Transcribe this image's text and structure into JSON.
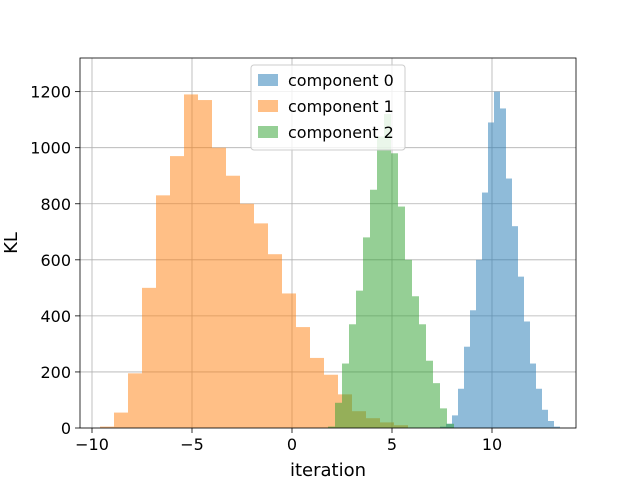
{
  "chart_data": {
    "type": "bar",
    "subtype": "histogram",
    "xlabel": "iteration",
    "ylabel": "KL",
    "xlim": [
      -10.6,
      14.2
    ],
    "ylim": [
      0,
      1320
    ],
    "x_ticks": [
      -10,
      -5,
      0,
      5,
      10
    ],
    "x_tick_labels": [
      "−10",
      "−5",
      "0",
      "5",
      "10"
    ],
    "y_ticks": [
      0,
      200,
      400,
      600,
      800,
      1000,
      1200
    ],
    "y_tick_labels": [
      "0",
      "200",
      "400",
      "600",
      "800",
      "1000",
      "1200"
    ],
    "grid": true,
    "legend_position": "upper center",
    "series": [
      {
        "name": "component 0",
        "color": "#1f77b4",
        "alpha": 0.5,
        "bin_edges": [
          7.4,
          7.7,
          8.0,
          8.3,
          8.6,
          8.9,
          9.2,
          9.5,
          9.8,
          10.1,
          10.4,
          10.7,
          11.0,
          11.3,
          11.6,
          11.9,
          12.2,
          12.5,
          12.8,
          13.1,
          13.4
        ],
        "counts": [
          5,
          15,
          45,
          140,
          290,
          420,
          600,
          840,
          1090,
          1200,
          1140,
          890,
          720,
          540,
          380,
          230,
          140,
          65,
          25,
          5
        ]
      },
      {
        "name": "component 1",
        "color": "#ff7f0e",
        "alpha": 0.5,
        "bin_edges": [
          -9.6,
          -8.9,
          -8.2,
          -7.5,
          -6.8,
          -6.1,
          -5.4,
          -4.7,
          -4.0,
          -3.3,
          -2.6,
          -1.9,
          -1.2,
          -0.5,
          0.2,
          0.9,
          1.6,
          2.3,
          3.0,
          3.7,
          4.4,
          5.1,
          5.8
        ],
        "counts": [
          5,
          55,
          195,
          500,
          830,
          970,
          1190,
          1170,
          1000,
          900,
          800,
          730,
          620,
          480,
          360,
          250,
          190,
          120,
          60,
          35,
          20,
          10
        ]
      },
      {
        "name": "component 2",
        "color": "#2ca02c",
        "alpha": 0.5,
        "bin_edges": [
          1.8,
          2.15,
          2.5,
          2.85,
          3.2,
          3.55,
          3.9,
          4.25,
          4.6,
          4.95,
          5.3,
          5.65,
          6.0,
          6.35,
          6.7,
          7.05,
          7.4,
          7.75,
          8.1
        ],
        "counts": [
          5,
          90,
          230,
          370,
          490,
          680,
          850,
          1040,
          1120,
          980,
          790,
          600,
          470,
          370,
          240,
          160,
          70,
          15
        ]
      }
    ]
  }
}
